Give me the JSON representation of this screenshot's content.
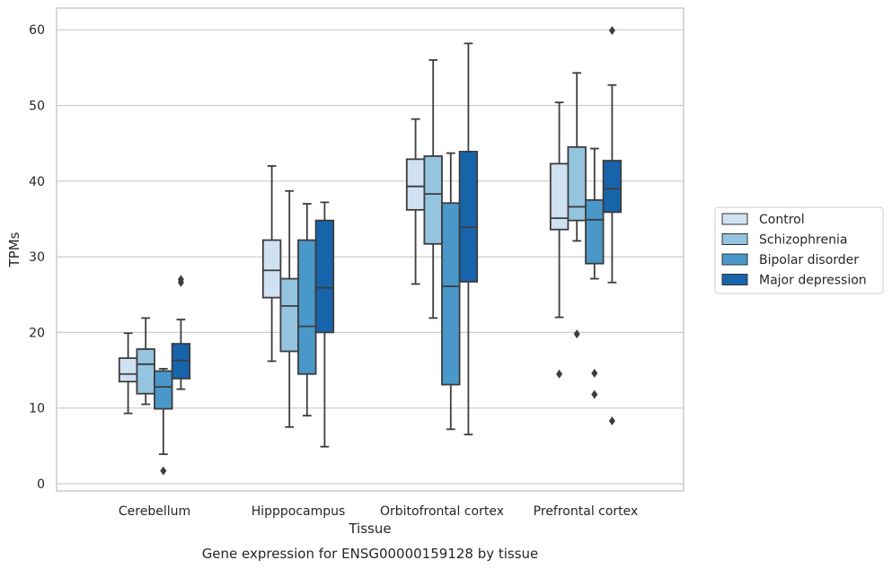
{
  "chart_data": {
    "type": "box",
    "caption": "Gene expression for ENSG00000159128 by tissue",
    "xlabel": "Tissue",
    "ylabel": "TPMs",
    "ylim": [
      -1,
      63
    ],
    "yticks": [
      0,
      10,
      20,
      30,
      40,
      50,
      60
    ],
    "grid": "horizontal",
    "legend_position": "right",
    "categories": [
      "Cerebellum",
      "Hipppocampus",
      "Orbitofrontal cortex",
      "Prefrontal cortex"
    ],
    "series": [
      {
        "name": "Control",
        "color": "#d0e1f2",
        "boxes": [
          {
            "whislo": 9.3,
            "q1": 13.5,
            "med": 14.5,
            "q3": 16.6,
            "whishi": 19.9,
            "fliers": []
          },
          {
            "whislo": 16.2,
            "q1": 24.6,
            "med": 28.2,
            "q3": 32.2,
            "whishi": 42.0,
            "fliers": []
          },
          {
            "whislo": 26.4,
            "q1": 36.2,
            "med": 39.3,
            "q3": 42.9,
            "whishi": 48.2,
            "fliers": []
          },
          {
            "whislo": 22.0,
            "q1": 33.6,
            "med": 35.1,
            "q3": 42.3,
            "whishi": 50.4,
            "fliers": [
              14.5
            ]
          }
        ]
      },
      {
        "name": "Schizophrenia",
        "color": "#94c4df",
        "boxes": [
          {
            "whislo": 10.5,
            "q1": 11.9,
            "med": 15.8,
            "q3": 17.8,
            "whishi": 21.9,
            "fliers": []
          },
          {
            "whislo": 7.5,
            "q1": 17.5,
            "med": 23.5,
            "q3": 27.1,
            "whishi": 38.7,
            "fliers": []
          },
          {
            "whislo": 21.9,
            "q1": 31.7,
            "med": 38.3,
            "q3": 43.3,
            "whishi": 56.0,
            "fliers": []
          },
          {
            "whislo": 32.1,
            "q1": 34.8,
            "med": 36.6,
            "q3": 44.5,
            "whishi": 54.3,
            "fliers": [
              19.8
            ]
          }
        ]
      },
      {
        "name": "Bipolar disorder",
        "color": "#4a98c9",
        "boxes": [
          {
            "whislo": 3.9,
            "q1": 9.9,
            "med": 12.8,
            "q3": 14.9,
            "whishi": 15.2,
            "fliers": [
              1.7
            ]
          },
          {
            "whislo": 9.0,
            "q1": 14.5,
            "med": 20.8,
            "q3": 32.2,
            "whishi": 37.0,
            "fliers": []
          },
          {
            "whislo": 7.2,
            "q1": 13.1,
            "med": 26.1,
            "q3": 37.1,
            "whishi": 43.7,
            "fliers": []
          },
          {
            "whislo": 27.1,
            "q1": 29.1,
            "med": 34.9,
            "q3": 37.5,
            "whishi": 44.3,
            "fliers": [
              14.6,
              11.8
            ]
          }
        ]
      },
      {
        "name": "Major depression",
        "color": "#1764ab",
        "boxes": [
          {
            "whislo": 12.5,
            "q1": 13.9,
            "med": 16.3,
            "q3": 18.5,
            "whishi": 21.7,
            "fliers": [
              26.6,
              27.0
            ]
          },
          {
            "whislo": 4.9,
            "q1": 20.0,
            "med": 25.9,
            "q3": 34.8,
            "whishi": 37.2,
            "fliers": []
          },
          {
            "whislo": 6.5,
            "q1": 26.7,
            "med": 33.9,
            "q3": 43.9,
            "whishi": 58.2,
            "fliers": []
          },
          {
            "whislo": 26.6,
            "q1": 35.9,
            "med": 39.0,
            "q3": 42.7,
            "whishi": 52.7,
            "fliers": [
              59.9,
              8.3
            ]
          }
        ]
      }
    ]
  }
}
